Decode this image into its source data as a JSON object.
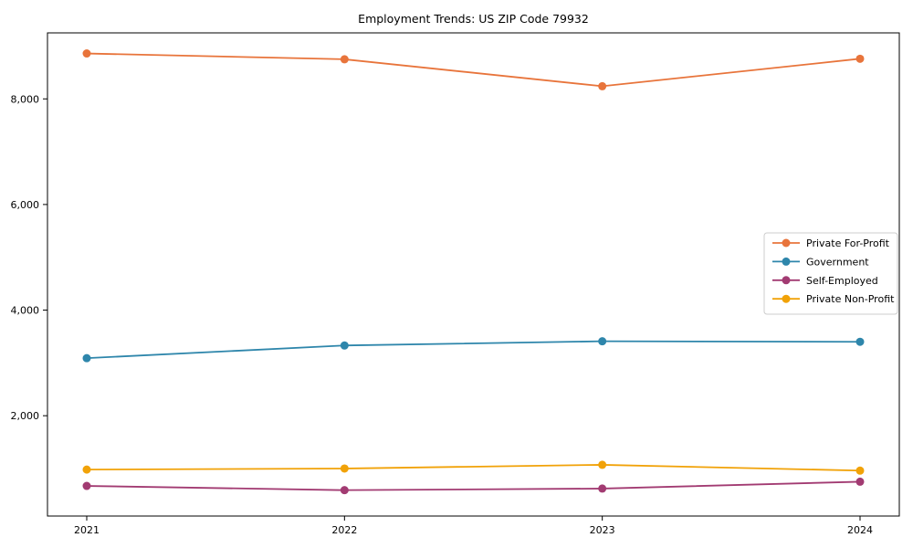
{
  "title": "Employment Trends: US ZIP Code 79932",
  "chart_data": {
    "type": "line",
    "x_labels": [
      "2021",
      "2022",
      "2023",
      "2024"
    ],
    "series": [
      {
        "name": "Private For-Profit",
        "color": "#E8743B",
        "values": [
          8860,
          8750,
          8240,
          8760
        ]
      },
      {
        "name": "Government",
        "color": "#2E86AB",
        "values": [
          3090,
          3330,
          3410,
          3400
        ]
      },
      {
        "name": "Self-Employed",
        "color": "#A23B72",
        "values": [
          670,
          590,
          620,
          750
        ]
      },
      {
        "name": "Private Non-Profit",
        "color": "#F1A208",
        "values": [
          980,
          1000,
          1070,
          960
        ]
      }
    ],
    "yticks": {
      "values": [
        2000,
        4000,
        6000,
        8000
      ],
      "labels": [
        "2,000",
        "4,000",
        "6,000",
        "8,000"
      ]
    },
    "ylim": [
      100,
      9250
    ],
    "xlabel": "",
    "ylabel": "",
    "grid": false,
    "legend_position": "right",
    "marker": "circle",
    "frame_color": "#000000",
    "legend_border_color": "#cccccc",
    "tick_label_color": "#000000"
  }
}
